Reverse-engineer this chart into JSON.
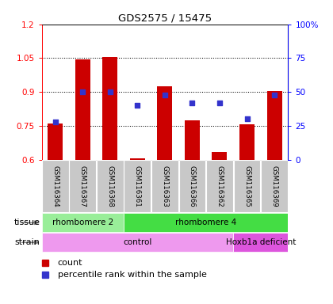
{
  "title": "GDS2575 / 15475",
  "samples": [
    "GSM116364",
    "GSM116367",
    "GSM116368",
    "GSM116361",
    "GSM116363",
    "GSM116366",
    "GSM116362",
    "GSM116365",
    "GSM116369"
  ],
  "counts": [
    0.76,
    1.045,
    1.055,
    0.605,
    0.925,
    0.775,
    0.635,
    0.755,
    0.905
  ],
  "percentiles": [
    28,
    50,
    50,
    40,
    48,
    42,
    42,
    30,
    48
  ],
  "ylim_left": [
    0.6,
    1.2
  ],
  "ylim_right": [
    0,
    100
  ],
  "yticks_left": [
    0.6,
    0.75,
    0.9,
    1.05,
    1.2
  ],
  "yticks_right": [
    0,
    25,
    50,
    75,
    100
  ],
  "ytick_labels_left": [
    "0.6",
    "0.75",
    "0.9",
    "1.05",
    "1.2"
  ],
  "ytick_labels_right": [
    "0",
    "25",
    "50",
    "75",
    "100%"
  ],
  "bar_color": "#cc0000",
  "dot_color": "#3333cc",
  "tissue_groups": [
    {
      "label": "rhombomere 2",
      "start": 0,
      "end": 3,
      "color": "#99ee99"
    },
    {
      "label": "rhombomere 4",
      "start": 3,
      "end": 9,
      "color": "#44dd44"
    }
  ],
  "strain_groups": [
    {
      "label": "control",
      "start": 0,
      "end": 7,
      "color": "#ee99ee"
    },
    {
      "label": "Hoxb1a deficient",
      "start": 7,
      "end": 9,
      "color": "#dd55dd"
    }
  ],
  "legend_count_label": "count",
  "legend_pct_label": "percentile rank within the sample",
  "sample_bg": "#c8c8c8",
  "fig_bg": "#ffffff"
}
